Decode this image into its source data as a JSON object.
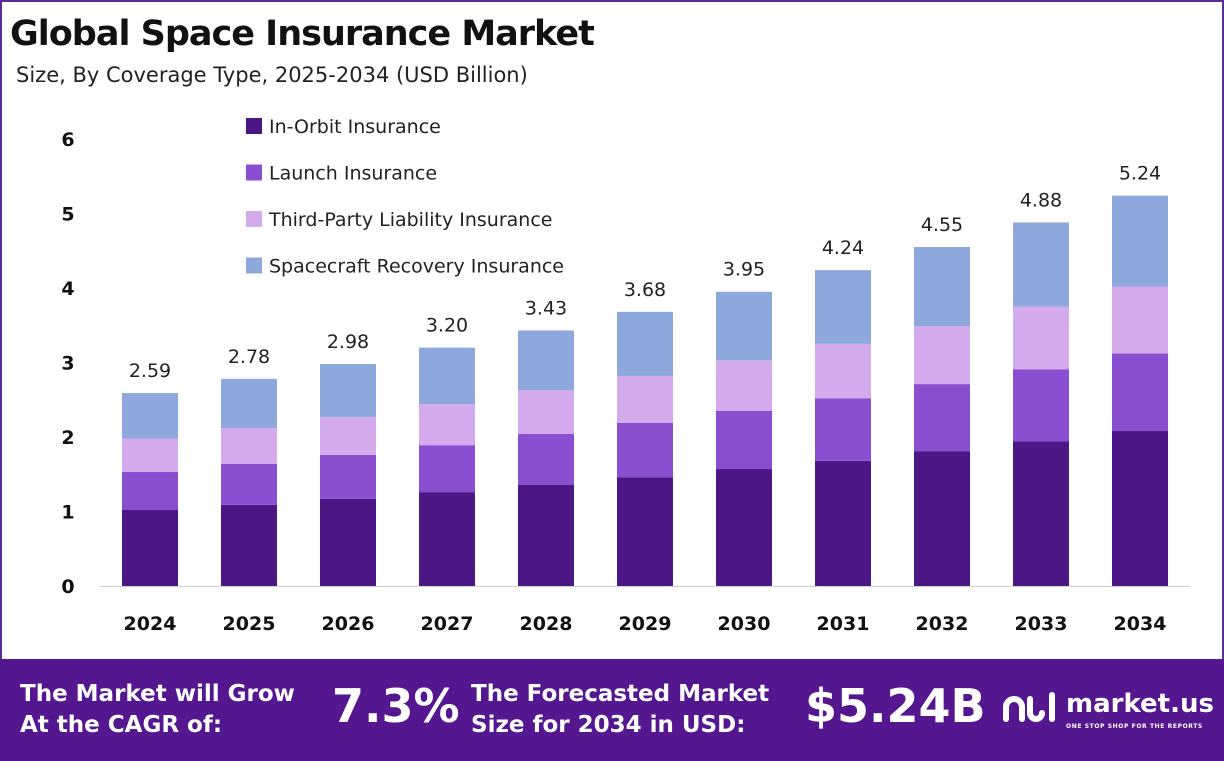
{
  "chart_data": {
    "type": "bar",
    "stacked": true,
    "title": "Global Space Insurance Market",
    "subtitle": "Size, By Coverage Type, 2025-2034 (USD Billion)",
    "categories": [
      "2024",
      "2025",
      "2026",
      "2027",
      "2028",
      "2029",
      "2030",
      "2031",
      "2032",
      "2033",
      "2034"
    ],
    "totals": [
      2.59,
      2.78,
      2.98,
      3.2,
      3.43,
      3.68,
      3.95,
      4.24,
      4.55,
      4.88,
      5.24
    ],
    "total_labels": [
      "2.59",
      "2.78",
      "2.98",
      "3.20",
      "3.43",
      "3.68",
      "3.95",
      "4.24",
      "4.55",
      "4.88",
      "5.24"
    ],
    "series": [
      {
        "name": "In-Orbit Insurance",
        "color": "#4a1784",
        "values": [
          1.02,
          1.09,
          1.17,
          1.26,
          1.36,
          1.46,
          1.57,
          1.68,
          1.81,
          1.94,
          2.08
        ]
      },
      {
        "name": "Launch Insurance",
        "color": "#8a4fd0",
        "values": [
          0.51,
          0.55,
          0.59,
          0.63,
          0.68,
          0.73,
          0.78,
          0.84,
          0.9,
          0.97,
          1.04
        ]
      },
      {
        "name": "Third-Party Liability Insurance",
        "color": "#d3aaeb",
        "values": [
          0.45,
          0.48,
          0.51,
          0.55,
          0.59,
          0.63,
          0.68,
          0.73,
          0.78,
          0.84,
          0.9
        ]
      },
      {
        "name": "Spacecraft Recovery Insurance",
        "color": "#8ea8de",
        "values": [
          0.61,
          0.66,
          0.71,
          0.76,
          0.8,
          0.86,
          0.92,
          0.99,
          1.06,
          1.13,
          1.22
        ]
      }
    ],
    "y_ticks": [
      "0",
      "1",
      "2",
      "3",
      "4",
      "5",
      "6"
    ],
    "ylim": [
      0,
      6
    ],
    "grid": false,
    "legend_position": "top-left"
  },
  "footer": {
    "cagr_line1": "The Market will Grow",
    "cagr_line2": "At the CAGR of:",
    "cagr_value": "7.3%",
    "forecast_line1": "The Forecasted Market",
    "forecast_line2": "Size for 2034 in USD:",
    "forecast_value": "$5.24B"
  },
  "brand": {
    "name": "market.us",
    "tagline": "ONE STOP SHOP FOR THE REPORTS"
  },
  "colors": {
    "footer_bg": "#54178f",
    "frame_border": "#5b2c91"
  }
}
